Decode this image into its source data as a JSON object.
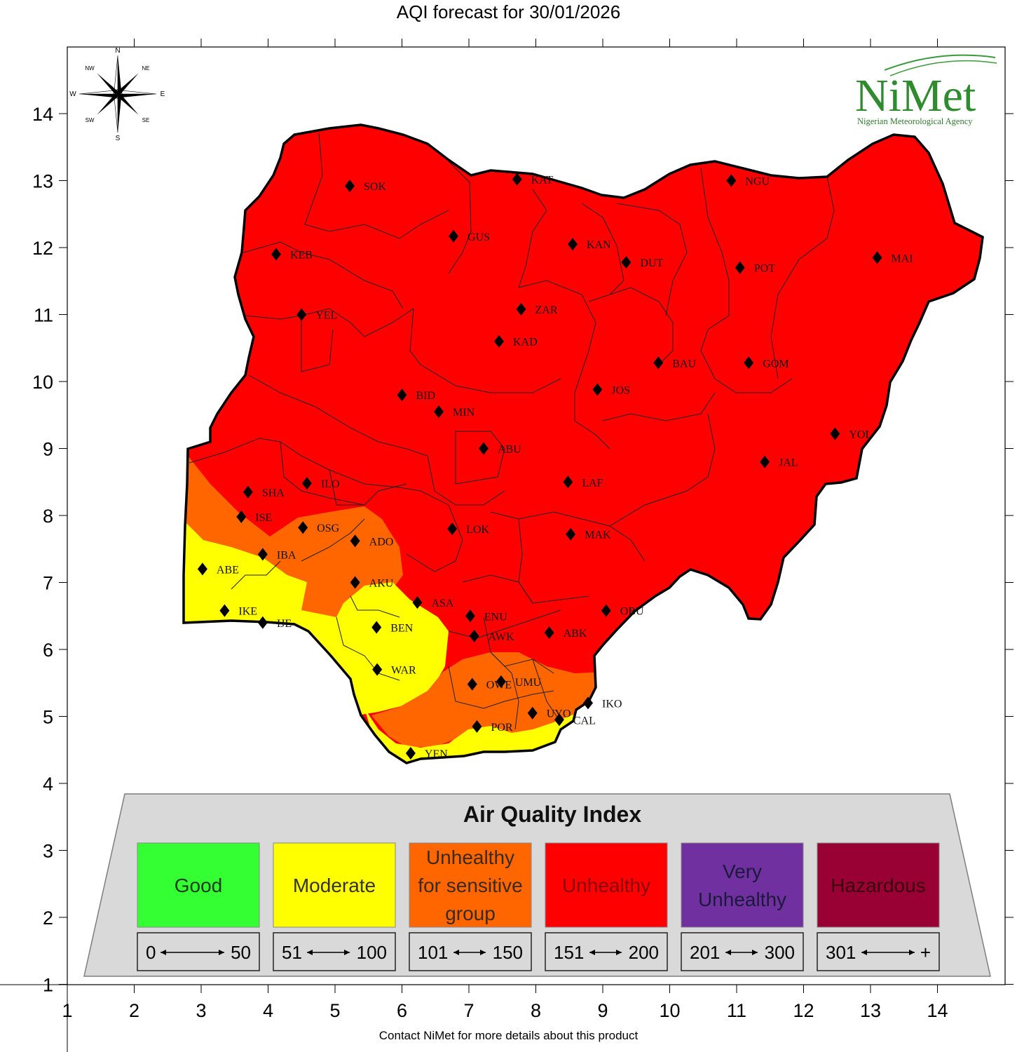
{
  "title": "AQI forecast for 30/01/2026",
  "footer": "Contact NiMet for more details about this product",
  "logo": {
    "text": "NiMet",
    "subtitle": "Nigerian Meteorological Agency",
    "color": "#2e8b2e"
  },
  "compass": {
    "n": "N",
    "s": "S",
    "e": "E",
    "w": "W",
    "ne": "NE",
    "nw": "NW",
    "se": "SE",
    "sw": "SW"
  },
  "axes": {
    "x_ticks": [
      "1",
      "2",
      "3",
      "4",
      "5",
      "6",
      "7",
      "8",
      "9",
      "10",
      "11",
      "12",
      "13",
      "14"
    ],
    "y_ticks": [
      "1",
      "2",
      "3",
      "4",
      "5",
      "6",
      "7",
      "8",
      "9",
      "10",
      "11",
      "12",
      "13",
      "14"
    ]
  },
  "aqi_colors": {
    "good": "#33ff33",
    "moderate": "#ffff00",
    "sensitive": "#ff6600",
    "unhealthy": "#ff0000",
    "very_unhealthy": "#7030a0",
    "hazardous": "#990033"
  },
  "legend": {
    "title": "Air Quality Index",
    "items": [
      {
        "label_lines": [
          "Good"
        ],
        "range_start": "0",
        "range_end": "50",
        "color": "#33ff33",
        "text_color": "#1a3a1a"
      },
      {
        "label_lines": [
          "Moderate"
        ],
        "range_start": "51",
        "range_end": "100",
        "color": "#ffff00",
        "text_color": "#333333"
      },
      {
        "label_lines": [
          "Unhealthy",
          "for sensitive",
          "group"
        ],
        "range_start": "101",
        "range_end": "150",
        "color": "#ff6600",
        "text_color": "#3a2a1a"
      },
      {
        "label_lines": [
          "Unhealthy"
        ],
        "range_start": "151",
        "range_end": "200",
        "color": "#ff0000",
        "text_color": "#8a0000"
      },
      {
        "label_lines": [
          "Very",
          "Unhealthy"
        ],
        "range_start": "201",
        "range_end": "300",
        "color": "#7030a0",
        "text_color": "#1a1a3a"
      },
      {
        "label_lines": [
          "Hazardous"
        ],
        "range_start": "301",
        "range_end": "+",
        "color": "#990033",
        "text_color": "#3a0010"
      }
    ]
  },
  "stations": [
    {
      "code": "SOK",
      "lon": 5.22,
      "lat": 12.92
    },
    {
      "code": "KAT",
      "lon": 7.72,
      "lat": 13.02
    },
    {
      "code": "NGU",
      "lon": 10.92,
      "lat": 13.0
    },
    {
      "code": "GUS",
      "lon": 6.77,
      "lat": 12.17
    },
    {
      "code": "KAN",
      "lon": 8.55,
      "lat": 12.05
    },
    {
      "code": "KEB",
      "lon": 4.12,
      "lat": 11.9
    },
    {
      "code": "DUT",
      "lon": 9.35,
      "lat": 11.78
    },
    {
      "code": "POT",
      "lon": 11.05,
      "lat": 11.7
    },
    {
      "code": "MAI",
      "lon": 13.1,
      "lat": 11.85
    },
    {
      "code": "YEL",
      "lon": 4.5,
      "lat": 11.0
    },
    {
      "code": "ZAR",
      "lon": 7.78,
      "lat": 11.08
    },
    {
      "code": "KAD",
      "lon": 7.45,
      "lat": 10.6
    },
    {
      "code": "BAU",
      "lon": 9.83,
      "lat": 10.28
    },
    {
      "code": "GOM",
      "lon": 11.18,
      "lat": 10.28
    },
    {
      "code": "JOS",
      "lon": 8.92,
      "lat": 9.88
    },
    {
      "code": "BID",
      "lon": 6.0,
      "lat": 9.8
    },
    {
      "code": "MIN",
      "lon": 6.55,
      "lat": 9.55
    },
    {
      "code": "YOL",
      "lon": 12.47,
      "lat": 9.22
    },
    {
      "code": "ABU",
      "lon": 7.22,
      "lat": 9.0
    },
    {
      "code": "JAL",
      "lon": 11.42,
      "lat": 8.8
    },
    {
      "code": "LAF",
      "lon": 8.48,
      "lat": 8.5
    },
    {
      "code": "SHA",
      "lon": 3.7,
      "lat": 8.35
    },
    {
      "code": "ILO",
      "lon": 4.58,
      "lat": 8.48
    },
    {
      "code": "ISE",
      "lon": 3.6,
      "lat": 7.98
    },
    {
      "code": "OSG",
      "lon": 4.52,
      "lat": 7.82
    },
    {
      "code": "LOK",
      "lon": 6.75,
      "lat": 7.8
    },
    {
      "code": "MAK",
      "lon": 8.52,
      "lat": 7.72
    },
    {
      "code": "ADO",
      "lon": 5.3,
      "lat": 7.62
    },
    {
      "code": "IBA",
      "lon": 3.92,
      "lat": 7.42
    },
    {
      "code": "ABE",
      "lon": 3.02,
      "lat": 7.2
    },
    {
      "code": "AKU",
      "lon": 5.3,
      "lat": 7.0
    },
    {
      "code": "ASA",
      "lon": 6.23,
      "lat": 6.7
    },
    {
      "code": "IKE",
      "lon": 3.35,
      "lat": 6.58
    },
    {
      "code": "IJE",
      "lon": 3.92,
      "lat": 6.4
    },
    {
      "code": "ENU",
      "lon": 7.02,
      "lat": 6.5
    },
    {
      "code": "OBU",
      "lon": 9.05,
      "lat": 6.58
    },
    {
      "code": "BEN",
      "lon": 5.62,
      "lat": 6.33
    },
    {
      "code": "AWK",
      "lon": 7.08,
      "lat": 6.2
    },
    {
      "code": "ABK",
      "lon": 8.2,
      "lat": 6.25
    },
    {
      "code": "WAR",
      "lon": 5.63,
      "lat": 5.7
    },
    {
      "code": "OWE",
      "lon": 7.05,
      "lat": 5.48
    },
    {
      "code": "UMU",
      "lon": 7.48,
      "lat": 5.52
    },
    {
      "code": "IKO",
      "lon": 8.78,
      "lat": 5.2
    },
    {
      "code": "UYO",
      "lon": 7.95,
      "lat": 5.05
    },
    {
      "code": "CAL",
      "lon": 8.35,
      "lat": 4.95
    },
    {
      "code": "POR",
      "lon": 7.12,
      "lat": 4.85
    },
    {
      "code": "YEN",
      "lon": 6.13,
      "lat": 4.45
    }
  ]
}
